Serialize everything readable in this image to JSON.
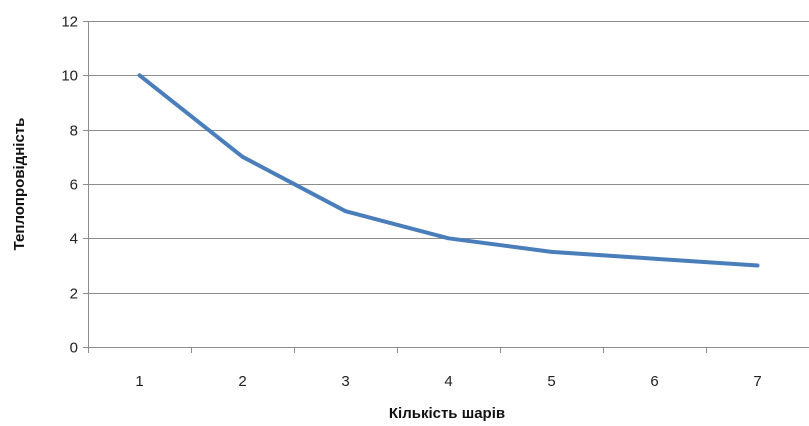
{
  "chart_data": {
    "type": "line",
    "x": [
      1,
      2,
      3,
      4,
      5,
      6,
      7
    ],
    "series": [
      {
        "values": [
          10,
          7,
          5,
          4,
          3.5,
          3.25,
          3
        ]
      }
    ],
    "xlabel": "Кількість  шарів",
    "ylabel": "Теплопровідність",
    "ylim": [
      0,
      12
    ],
    "yticks": [
      0,
      2,
      4,
      6,
      8,
      10,
      12
    ],
    "xticks": [
      1,
      2,
      3,
      4,
      5,
      6,
      7
    ],
    "grid": true,
    "legend": "none",
    "colors": {
      "series": "#4a7ebb",
      "grid": "#8c8c8c"
    }
  }
}
